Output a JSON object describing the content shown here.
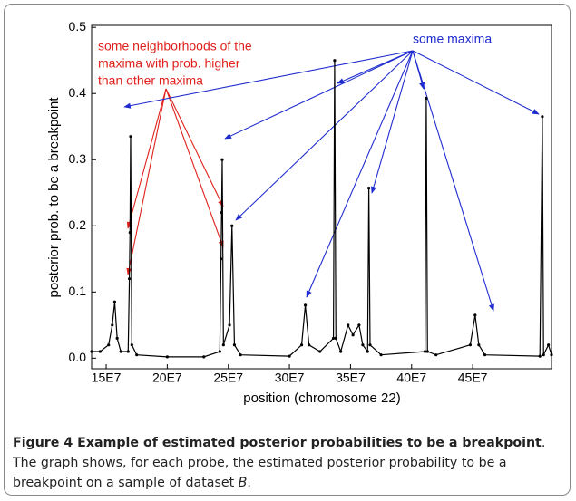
{
  "chart_data": {
    "type": "line",
    "xlabel": "position (chromosome 22)",
    "ylabel": "posterior prob. to be a breakpoint",
    "annotations": [
      "some neighborhoods of the",
      "maxima with prob. higher",
      "than other maxima",
      "some maxima"
    ],
    "color": "#000000",
    "annotation_colors": [
      "#e0201b",
      "#1f2ccf"
    ],
    "x": [
      138100000,
      145000000,
      152000000,
      155000000,
      157000000,
      159000000,
      162000000,
      168000000,
      169000000,
      169500000,
      170000000,
      171000000,
      175000000,
      200000000,
      230000000,
      243000000,
      244000000,
      244500000,
      245000000,
      246000000,
      251000000,
      253000000,
      255000000,
      260000000,
      300000000,
      310000000,
      313000000,
      316000000,
      325000000,
      336000000,
      337000000,
      338000000,
      342000000,
      348000000,
      352000000,
      357000000,
      360000000,
      364000000,
      365000000,
      366000000,
      375000000,
      411000000,
      412000000,
      413000000,
      420000000,
      448000000,
      452000000,
      455000000,
      460000000,
      505000000,
      507000000,
      508000000,
      512000000,
      514500000
    ],
    "values": [
      0.01,
      0.01,
      0.02,
      0.05,
      0.085,
      0.03,
      0.01,
      0.01,
      0.12,
      0.19,
      0.335,
      0.02,
      0.005,
      0.002,
      0.002,
      0.01,
      0.15,
      0.22,
      0.3,
      0.02,
      0.05,
      0.2,
      0.02,
      0.005,
      0.003,
      0.02,
      0.08,
      0.02,
      0.01,
      0.03,
      0.45,
      0.03,
      0.01,
      0.05,
      0.035,
      0.05,
      0.02,
      0.01,
      0.257,
      0.02,
      0.005,
      0.01,
      0.393,
      0.01,
      0.005,
      0.02,
      0.065,
      0.02,
      0.005,
      0.003,
      0.365,
      0.005,
      0.02,
      0.005
    ],
    "xlim": [
      138100000,
      514500000
    ],
    "xticks": [
      {
        "value": 150000000,
        "label": "15E7"
      },
      {
        "value": 200000000,
        "label": "20E7"
      },
      {
        "value": 250000000,
        "label": "25E7"
      },
      {
        "value": 300000000,
        "label": "30E7"
      },
      {
        "value": 350000000,
        "label": "35E7"
      },
      {
        "value": 400000000,
        "label": "40E7"
      },
      {
        "value": 450000000,
        "label": "45E7"
      }
    ],
    "ylim": [
      -0.016,
      0.503
    ],
    "yticks": [
      {
        "value": 0,
        "label": "0.0"
      },
      0.1,
      0.2,
      0.3,
      0.4,
      0.5
    ],
    "grid": false
  },
  "caption": {
    "bold": "Figure 4 Example of estimated posterior probabilities to be a breakpoint",
    "text": ". The graph shows, for each probe, the estimated posterior probability to be a breakpoint on a sample of dataset ",
    "italic": "B",
    "end": "."
  }
}
